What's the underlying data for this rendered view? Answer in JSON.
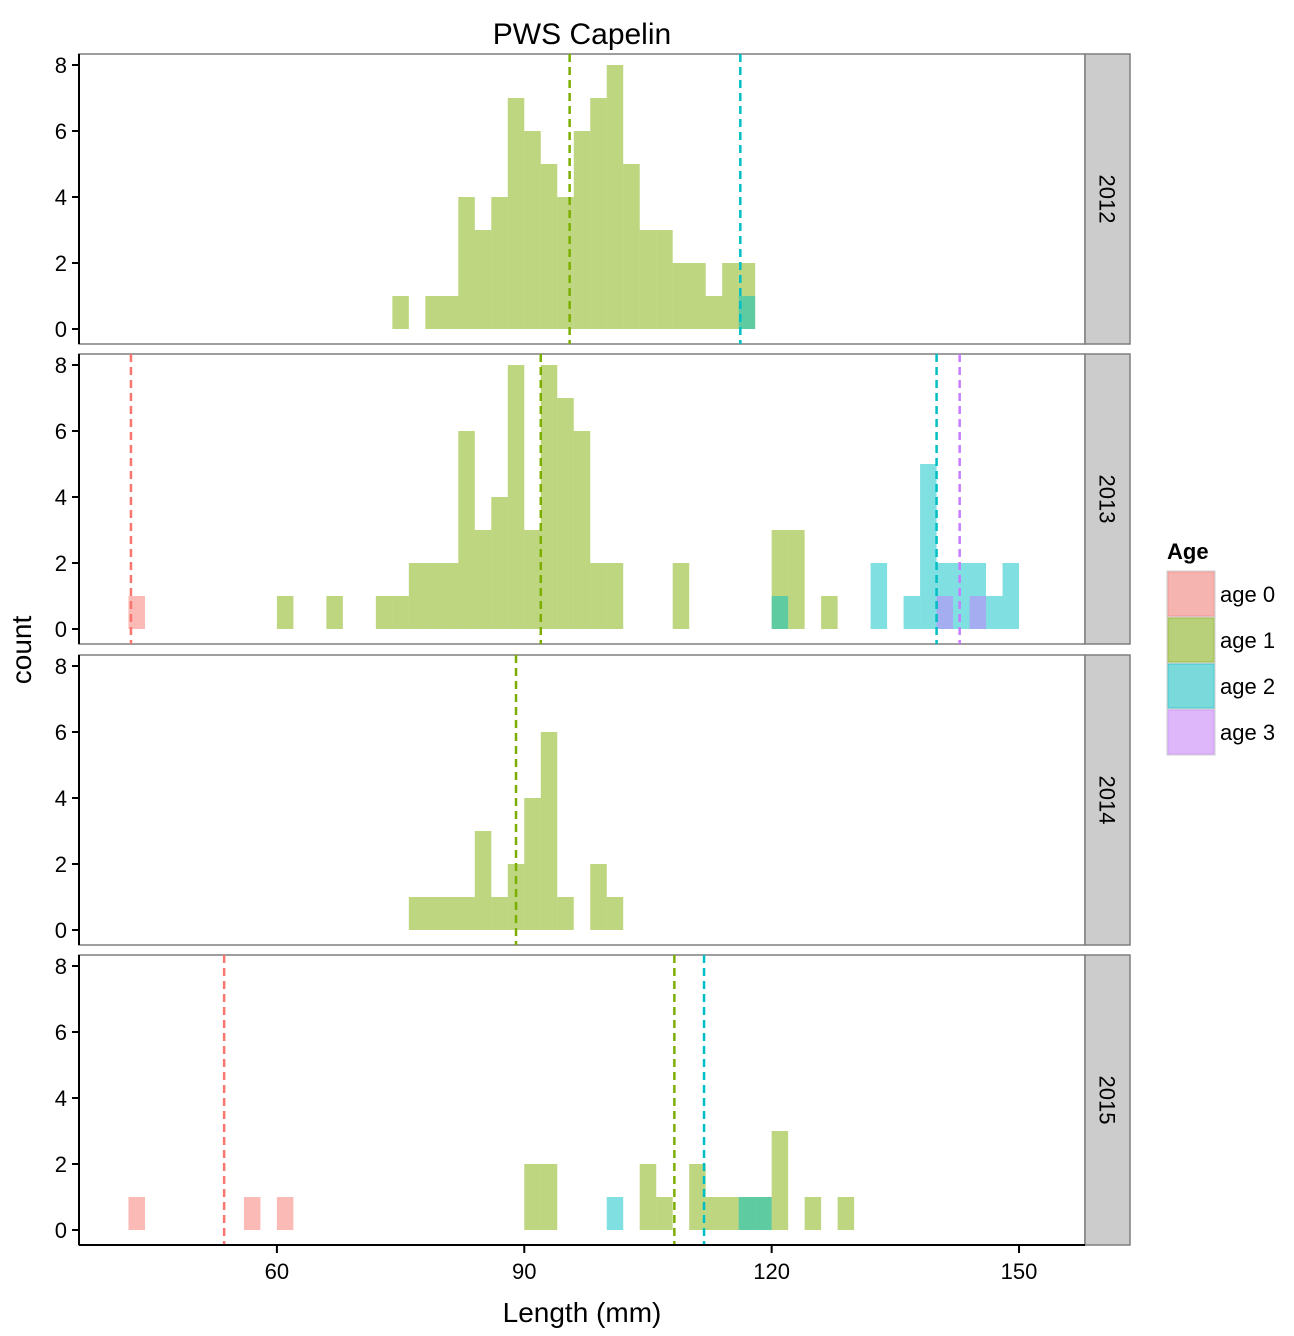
{
  "chart_data": {
    "type": "bar",
    "subtype": "faceted-histogram",
    "title": "PWS Capelin",
    "xlabel": "Length (mm)",
    "ylabel": "count",
    "xlim": [
      36,
      158
    ],
    "ylim": [
      0,
      8
    ],
    "x_ticks": [
      60,
      90,
      120,
      150
    ],
    "y_ticks": [
      0,
      2,
      4,
      6,
      8
    ],
    "bin_width": 2,
    "grid": false,
    "legend": {
      "title": "Age",
      "position": "right",
      "entries": [
        {
          "key": "age0",
          "label": "age 0",
          "color": "#F8766D"
        },
        {
          "key": "age1",
          "label": "age 1",
          "color": "#7CAE00"
        },
        {
          "key": "age2",
          "label": "age 2",
          "color": "#00BFC4"
        },
        {
          "key": "age3",
          "label": "age 3",
          "color": "#C77CFF"
        }
      ]
    },
    "facets": [
      {
        "label": "2012",
        "means": {
          "age1": 95.5,
          "age2": 116.2
        },
        "series": {
          "age1": [
            [
              75,
              1
            ],
            [
              79,
              1
            ],
            [
              81,
              1
            ],
            [
              83,
              4
            ],
            [
              85,
              3
            ],
            [
              87,
              4
            ],
            [
              89,
              7
            ],
            [
              91,
              6
            ],
            [
              93,
              5
            ],
            [
              95,
              4
            ],
            [
              97,
              6
            ],
            [
              99,
              7
            ],
            [
              101,
              8
            ],
            [
              103,
              5
            ],
            [
              105,
              3
            ],
            [
              107,
              3
            ],
            [
              109,
              2
            ],
            [
              111,
              2
            ],
            [
              113,
              1
            ],
            [
              115,
              2
            ],
            [
              117,
              2
            ]
          ],
          "age2": [
            [
              117,
              1
            ]
          ]
        }
      },
      {
        "label": "2013",
        "means": {
          "age0": 42.3,
          "age1": 92.0,
          "age2": 140.0,
          "age3": 142.8
        },
        "series": {
          "age0": [
            [
              43,
              1
            ]
          ],
          "age1": [
            [
              61,
              1
            ],
            [
              67,
              1
            ],
            [
              73,
              1
            ],
            [
              75,
              1
            ],
            [
              77,
              2
            ],
            [
              79,
              2
            ],
            [
              81,
              2
            ],
            [
              83,
              6
            ],
            [
              85,
              3
            ],
            [
              87,
              4
            ],
            [
              89,
              8
            ],
            [
              91,
              3
            ],
            [
              93,
              8
            ],
            [
              95,
              7
            ],
            [
              97,
              6
            ],
            [
              99,
              2
            ],
            [
              101,
              2
            ],
            [
              109,
              2
            ],
            [
              121,
              3
            ],
            [
              123,
              3
            ],
            [
              127,
              1
            ]
          ],
          "age2": [
            [
              121,
              1
            ],
            [
              133,
              2
            ],
            [
              137,
              1
            ],
            [
              139,
              5
            ],
            [
              141,
              2
            ],
            [
              143,
              2
            ],
            [
              145,
              2
            ],
            [
              147,
              1
            ],
            [
              149,
              2
            ]
          ],
          "age3": [
            [
              141,
              1
            ],
            [
              145,
              1
            ]
          ]
        }
      },
      {
        "label": "2014",
        "means": {
          "age1": 89.0
        },
        "series": {
          "age1": [
            [
              77,
              1
            ],
            [
              79,
              1
            ],
            [
              81,
              1
            ],
            [
              83,
              1
            ],
            [
              85,
              3
            ],
            [
              87,
              1
            ],
            [
              89,
              2
            ],
            [
              91,
              4
            ],
            [
              93,
              6
            ],
            [
              95,
              1
            ],
            [
              99,
              2
            ],
            [
              101,
              1
            ]
          ]
        }
      },
      {
        "label": "2015",
        "means": {
          "age0": 53.6,
          "age1": 108.2,
          "age2": 111.8
        },
        "series": {
          "age0": [
            [
              43,
              1
            ],
            [
              57,
              1
            ],
            [
              61,
              1
            ]
          ],
          "age1": [
            [
              91,
              2
            ],
            [
              93,
              2
            ],
            [
              105,
              2
            ],
            [
              107,
              1
            ],
            [
              111,
              2
            ],
            [
              113,
              1
            ],
            [
              115,
              1
            ],
            [
              117,
              1
            ],
            [
              119,
              1
            ],
            [
              121,
              3
            ],
            [
              125,
              1
            ],
            [
              129,
              1
            ]
          ],
          "age2": [
            [
              101,
              1
            ],
            [
              117,
              1
            ],
            [
              119,
              1
            ]
          ]
        }
      }
    ]
  }
}
